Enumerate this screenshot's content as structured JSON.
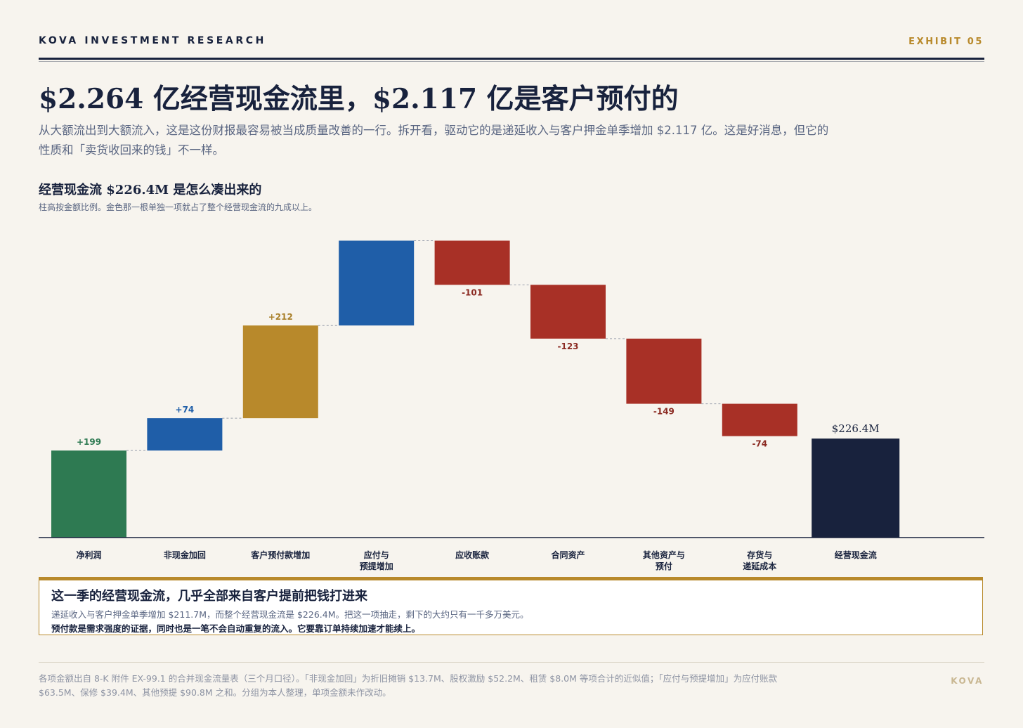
{
  "header": {
    "brand": "KOVA INVESTMENT RESEARCH",
    "exhibit": "EXHIBIT 05"
  },
  "headline": "$2.264 亿经营现金流里，$2.117 亿是客户预付的",
  "subhead": "从大额流出到大额流入，这是这份财报最容易被当成质量改善的一行。拆开看，驱动它的是递延收入与客户押金单季增加 $2.117 亿。这是好消息，但它的性质和「卖货收回来的钱」不一样。",
  "chart_data": {
    "type": "waterfall",
    "title": "经营现金流 $226.4M 是怎么凑出来的",
    "note": "柱高按金额比例。金色那一根单独一项就占了整个经营现金流的九成以上。",
    "unit": "$M",
    "categories": [
      "净利润",
      "非现金加回",
      "客户预付款增加",
      "应付与\n预提增加",
      "应收账款",
      "合同资产",
      "其他资产与\n预付",
      "存货与\n递延成本",
      "经营现金流"
    ],
    "values": [
      199,
      74,
      212,
      194,
      -101,
      -123,
      -149,
      -74,
      226.4
    ],
    "value_labels": [
      "+199",
      "+74",
      "+212",
      "",
      "-101",
      "-123",
      "-149",
      "-74",
      "$226.4M"
    ],
    "kinds": [
      "increase",
      "increase",
      "highlight",
      "increase",
      "decrease",
      "decrease",
      "decrease",
      "decrease",
      "total"
    ],
    "colors": {
      "net_income": "#2e7a52",
      "increase": "#1f5ea8",
      "highlight": "#b8892b",
      "decrease": "#a83026",
      "total": "#18223d",
      "label_positive": "#1f5ea8",
      "label_negative": "#8b2a22",
      "label_net_income": "#2e7a52",
      "label_highlight": "#a9802b"
    },
    "ylim": [
      0,
      818
    ],
    "grid": false,
    "legend": "none"
  },
  "callout": {
    "title": "这一季的经营现金流，几乎全部来自客户提前把钱打进来",
    "body1": "递延收入与客户押金单季增加 $211.7M，而整个经营现金流是 $226.4M。把这一项抽走，剩下的大约只有一千多万美元。",
    "body2": "预付款是需求强度的证据，同时也是一笔不会自动重复的流入。它要靠订单持续加速才能续上。"
  },
  "footer": {
    "note": "各项金额出自 8-K 附件 EX-99.1 的合并现金流量表（三个月口径）。「非现金加回」为折旧摊销 $13.7M、股权激励 $52.2M、租赁 $8.0M 等项合计的近似值；「应付与预提增加」为应付账款 $63.5M、保修 $39.4M、其他预提 $90.8M 之和。分组为本人整理，单项金额未作改动。",
    "brand": "KOVA"
  }
}
